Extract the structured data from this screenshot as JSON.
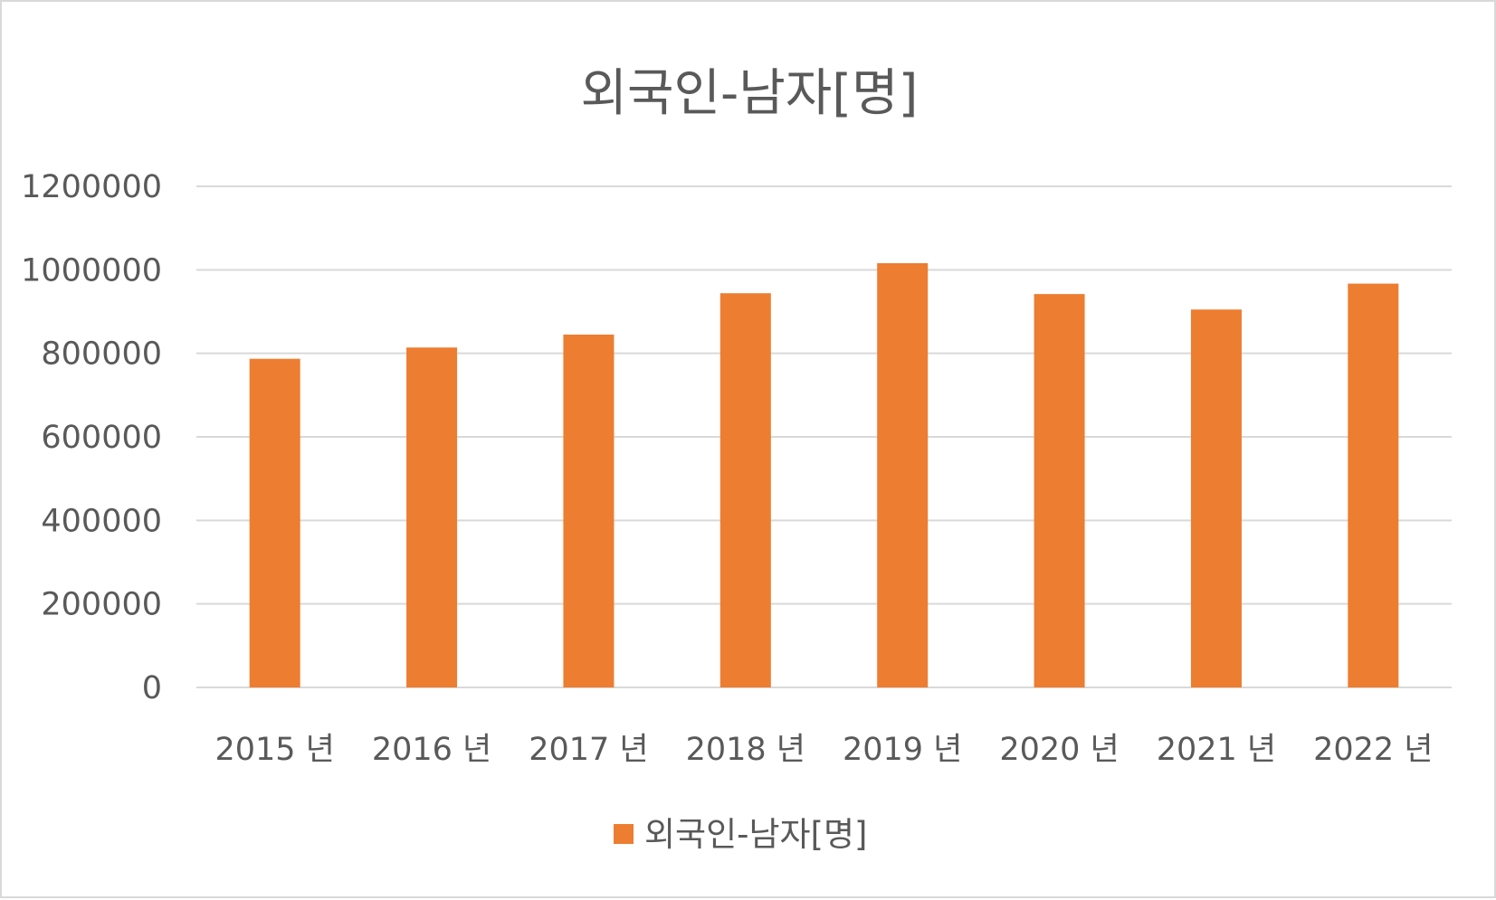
{
  "chart_data": {
    "type": "bar",
    "title": "외국인-남자[명]",
    "categories": [
      "2015 년",
      "2016 년",
      "2017 년",
      "2018 년",
      "2019 년",
      "2020 년",
      "2021 년",
      "2022 년"
    ],
    "series": [
      {
        "name": "외국인-남자[명]",
        "values": [
          787000,
          814000,
          845000,
          944000,
          1016000,
          942000,
          905000,
          967000
        ]
      }
    ],
    "yticks": [
      "0",
      "200000",
      "400000",
      "600000",
      "800000",
      "1000000",
      "1200000"
    ],
    "ylim": [
      0,
      1200000
    ],
    "grid": true,
    "legend_position": "bottom",
    "xlabel": "",
    "ylabel": "",
    "colors": {
      "bar": "#ED7D31",
      "grid": "#D9D9D9",
      "text": "#595959",
      "border": "#D9D9D9"
    }
  }
}
